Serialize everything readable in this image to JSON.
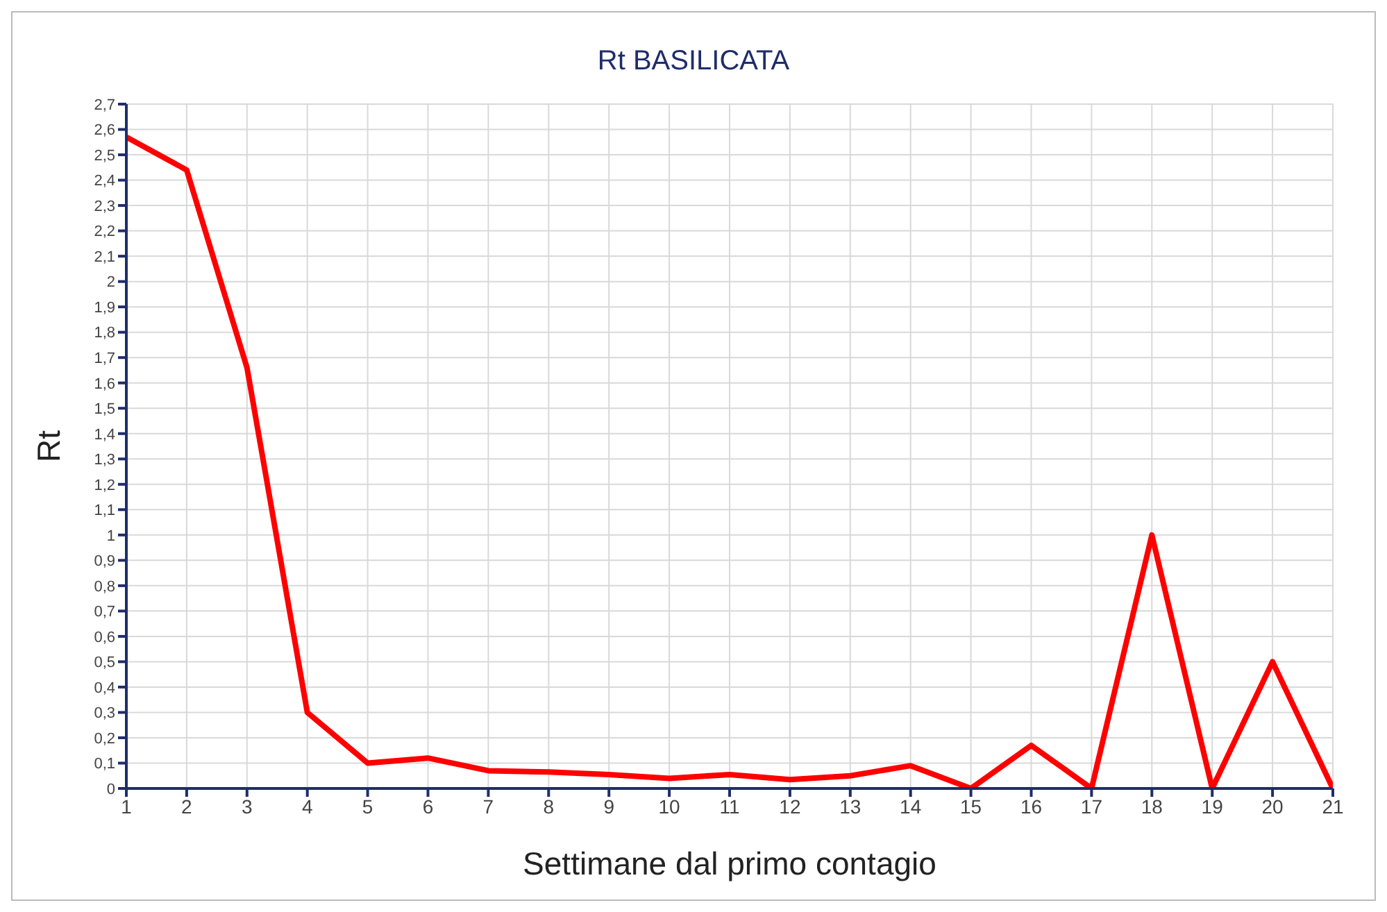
{
  "chart_data": {
    "type": "line",
    "title": "Rt BASILICATA",
    "xlabel": "Settimane dal primo contagio",
    "ylabel": "Rt",
    "x": [
      1,
      2,
      3,
      4,
      5,
      6,
      7,
      8,
      9,
      10,
      11,
      12,
      13,
      14,
      15,
      16,
      17,
      18,
      19,
      20,
      21
    ],
    "series": [
      {
        "color": "#ff0000",
        "values": [
          2.57,
          2.44,
          1.66,
          0.3,
          0.1,
          0.12,
          0.07,
          0.065,
          0.055,
          0.04,
          0.055,
          0.035,
          0.05,
          0.09,
          0,
          0.17,
          0,
          1.0,
          0,
          0.5,
          0
        ]
      }
    ],
    "xlim": [
      1,
      21
    ],
    "xticks": [
      1,
      2,
      3,
      4,
      5,
      6,
      7,
      8,
      9,
      10,
      11,
      12,
      13,
      14,
      15,
      16,
      17,
      18,
      19,
      20,
      21
    ],
    "ylim": [
      0,
      2.7
    ],
    "yticks": [
      0,
      {
        "value": 0.1,
        "label": "0,1"
      },
      {
        "value": 0.2,
        "label": "0,2"
      },
      {
        "value": 0.3,
        "label": "0,3"
      },
      {
        "value": 0.4,
        "label": "0,4"
      },
      {
        "value": 0.5,
        "label": "0,5"
      },
      {
        "value": 0.6,
        "label": "0,6"
      },
      {
        "value": 0.7,
        "label": "0,7"
      },
      {
        "value": 0.8,
        "label": "0,8"
      },
      {
        "value": 0.9,
        "label": "0,9"
      },
      1,
      {
        "value": 1.1,
        "label": "1,1"
      },
      {
        "value": 1.2,
        "label": "1,2"
      },
      {
        "value": 1.3,
        "label": "1,3"
      },
      {
        "value": 1.4,
        "label": "1,4"
      },
      {
        "value": 1.5,
        "label": "1,5"
      },
      {
        "value": 1.6,
        "label": "1,6"
      },
      {
        "value": 1.7,
        "label": "1,7"
      },
      {
        "value": 1.8,
        "label": "1,8"
      },
      {
        "value": 1.9,
        "label": "1,9"
      },
      2,
      {
        "value": 2.1,
        "label": "2,1"
      },
      {
        "value": 2.2,
        "label": "2,2"
      },
      {
        "value": 2.3,
        "label": "2,3"
      },
      {
        "value": 2.4,
        "label": "2,4"
      },
      {
        "value": 2.5,
        "label": "2,5"
      },
      {
        "value": 2.6,
        "label": "2,6"
      },
      {
        "value": 2.7,
        "label": "2,7"
      }
    ],
    "grid": true,
    "legend": false,
    "line_style": "solid"
  }
}
